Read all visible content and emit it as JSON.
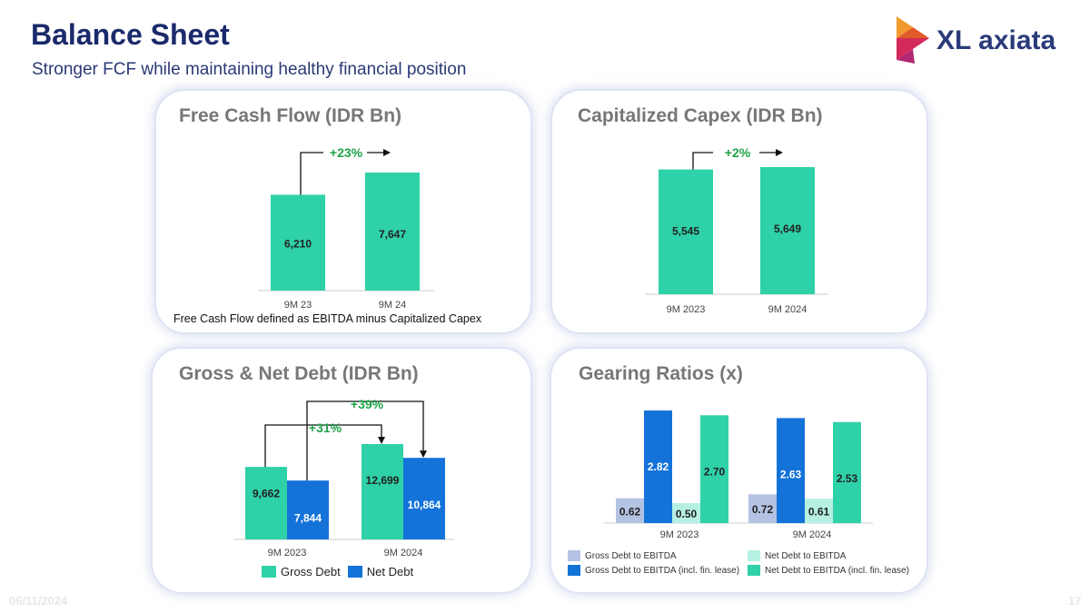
{
  "header": {
    "title": "Balance Sheet",
    "subtitle": "Stronger FCF while maintaining healthy financial position"
  },
  "logo": {
    "text": "XL axiata"
  },
  "footer": {
    "date": "06/11/2024",
    "page": "17"
  },
  "colors": {
    "teal": "#2fd1a8",
    "blue": "#1473d9",
    "light_blue": "#b4c2e3",
    "light_teal": "#b6f0e2",
    "navy": "#1b2a6b",
    "growth": "#1fa34a"
  },
  "chart_data": [
    {
      "id": "fcf",
      "type": "bar",
      "title": "Free Cash Flow (IDR Bn)",
      "categories": [
        "9M 23",
        "9M 24"
      ],
      "values": [
        6210,
        7647
      ],
      "labels": [
        "6,210",
        "7,647"
      ],
      "growth": "+23%",
      "note": "Free Cash Flow defined as EBITDA minus Capitalized Capex"
    },
    {
      "id": "capex",
      "type": "bar",
      "title": "Capitalized Capex (IDR Bn)",
      "categories": [
        "9M 2023",
        "9M 2024"
      ],
      "values": [
        5545,
        5649
      ],
      "labels": [
        "5,545",
        "5,649"
      ],
      "growth": "+2%"
    },
    {
      "id": "debt",
      "type": "bar",
      "title": "Gross & Net Debt (IDR Bn)",
      "categories": [
        "9M 2023",
        "9M 2024"
      ],
      "series": [
        {
          "name": "Gross Debt",
          "values": [
            9662,
            12699
          ],
          "labels": [
            "9,662",
            "12,699"
          ]
        },
        {
          "name": "Net Debt",
          "values": [
            7844,
            10864
          ],
          "labels": [
            "7,844",
            "10,864"
          ]
        }
      ],
      "growth": {
        "gross": "+31%",
        "net": "+39%"
      }
    },
    {
      "id": "gearing",
      "type": "bar",
      "title": "Gearing Ratios (x)",
      "categories": [
        "9M 2023",
        "9M 2024"
      ],
      "series": [
        {
          "name": "Gross Debt to EBITDA",
          "values": [
            0.62,
            0.72
          ],
          "labels": [
            "0.62",
            "0.72"
          ]
        },
        {
          "name": "Gross Debt to EBITDA (incl. fin. lease)",
          "values": [
            2.82,
            2.63
          ],
          "labels": [
            "2.82",
            "2.63"
          ]
        },
        {
          "name": "Net Debt to EBITDA",
          "values": [
            0.5,
            0.61
          ],
          "labels": [
            "0.50",
            "0.61"
          ]
        },
        {
          "name": "Net Debt to EBITDA (incl. fin. lease)",
          "values": [
            2.7,
            2.53
          ],
          "labels": [
            "2.70",
            "2.53"
          ]
        }
      ]
    }
  ]
}
